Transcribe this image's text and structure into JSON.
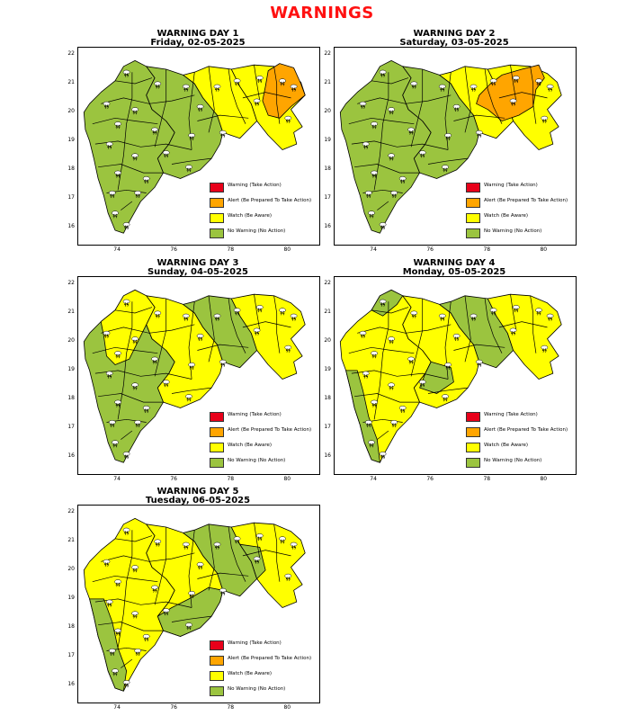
{
  "page_title": "WARNINGS",
  "colors": {
    "title": "#ff1111",
    "warning": "#e8001a",
    "alert": "#ffa500",
    "watch": "#ffff00",
    "no_warning": "#9bc43f",
    "sea": "#ffffff",
    "border": "#000000"
  },
  "legend": [
    {
      "label": "Warning (Take Action)",
      "color": "#e8001a"
    },
    {
      "label": "Alert (Be Prepared To Take Action)",
      "color": "#ffa500"
    },
    {
      "label": "Watch (Be Aware)",
      "color": "#ffff00"
    },
    {
      "label": "No Warning (No Action)",
      "color": "#9bc43f"
    }
  ],
  "axes": {
    "x_ticks": [
      "74",
      "76",
      "78",
      "80"
    ],
    "y_ticks": [
      "22",
      "21",
      "20",
      "19",
      "18",
      "17",
      "16"
    ]
  },
  "icon": "thunderstorm-cloud-icon",
  "panels": [
    {
      "heading": "WARNING DAY 1",
      "date": "Friday, 02-05-2025"
    },
    {
      "heading": "WARNING DAY 2",
      "date": "Saturday, 03-05-2025"
    },
    {
      "heading": "WARNING DAY 3",
      "date": "Sunday, 04-05-2025"
    },
    {
      "heading": "WARNING DAY 4",
      "date": "Monday, 05-05-2025"
    },
    {
      "heading": "WARNING DAY 5",
      "date": "Tuesday, 06-05-2025"
    }
  ]
}
